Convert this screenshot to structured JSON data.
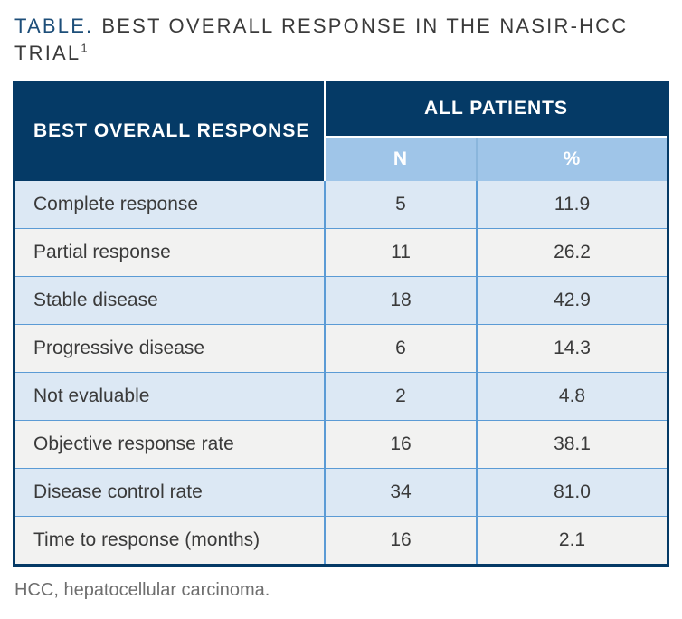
{
  "title": {
    "prefix": "TABLE.",
    "line1_rest": "BEST OVERALL RESPONSE IN THE NASIR-HCC",
    "line2": "TRIAL",
    "footnote_marker": "1"
  },
  "table": {
    "row_header": "BEST OVERALL RESPONSE",
    "group_header": "ALL PATIENTS",
    "columns": [
      "N",
      "%"
    ],
    "rows": [
      {
        "label": "Complete response",
        "n": "5",
        "pct": "11.9"
      },
      {
        "label": "Partial response",
        "n": "11",
        "pct": "26.2"
      },
      {
        "label": "Stable disease",
        "n": "18",
        "pct": "42.9"
      },
      {
        "label": "Progressive disease",
        "n": "6",
        "pct": "14.3"
      },
      {
        "label": "Not evaluable",
        "n": "2",
        "pct": "4.8"
      },
      {
        "label": "Objective response rate",
        "n": "16",
        "pct": "38.1"
      },
      {
        "label": "Disease control rate",
        "n": "34",
        "pct": "81.0"
      },
      {
        "label": "Time to response (months)",
        "n": "16",
        "pct": "2.1"
      }
    ]
  },
  "footnote": "HCC, hepatocellular carcinoma.",
  "colors": {
    "header_navy": "#053a66",
    "subheader_blue": "#9fc5e8",
    "row_blue": "#dce8f4",
    "row_gray": "#f2f2f1",
    "divider_blue": "#5b9bd5",
    "title_accent_blue": "#1d4e79",
    "text_dark": "#3a3a3a",
    "footnote_gray": "#6e6e6e"
  }
}
